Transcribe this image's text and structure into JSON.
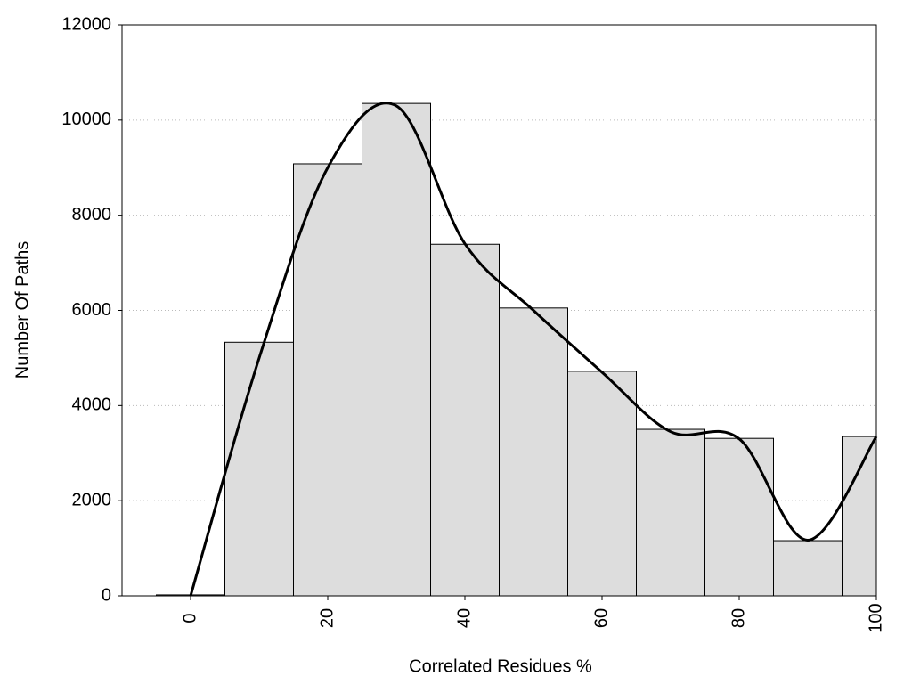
{
  "chart_data": {
    "type": "histogram",
    "x_label": "Correlated Residues %",
    "y_label": "Number Of Paths",
    "bins": [
      -5,
      5,
      15,
      25,
      35,
      45,
      55,
      65,
      75,
      85,
      95,
      100
    ],
    "values": [
      20,
      5330,
      9080,
      10350,
      7390,
      6050,
      4720,
      3500,
      3310,
      1160,
      3350
    ],
    "color": "#dddddd",
    "line": {
      "type": "line",
      "color": "#000000",
      "x": [
        0,
        10,
        20,
        30,
        40,
        50,
        60,
        70,
        80,
        90,
        100
      ],
      "values": [
        0,
        5000,
        9000,
        10300,
        7400,
        6000,
        4700,
        3450,
        3300,
        1170,
        3350
      ]
    },
    "xlim": [
      -10,
      100
    ],
    "xticks": [
      0,
      20,
      40,
      60,
      80,
      100
    ],
    "ylim": [
      0,
      12000
    ],
    "yticks": [
      0,
      2000,
      4000,
      6000,
      8000,
      10000,
      12000
    ],
    "grid": true
  }
}
